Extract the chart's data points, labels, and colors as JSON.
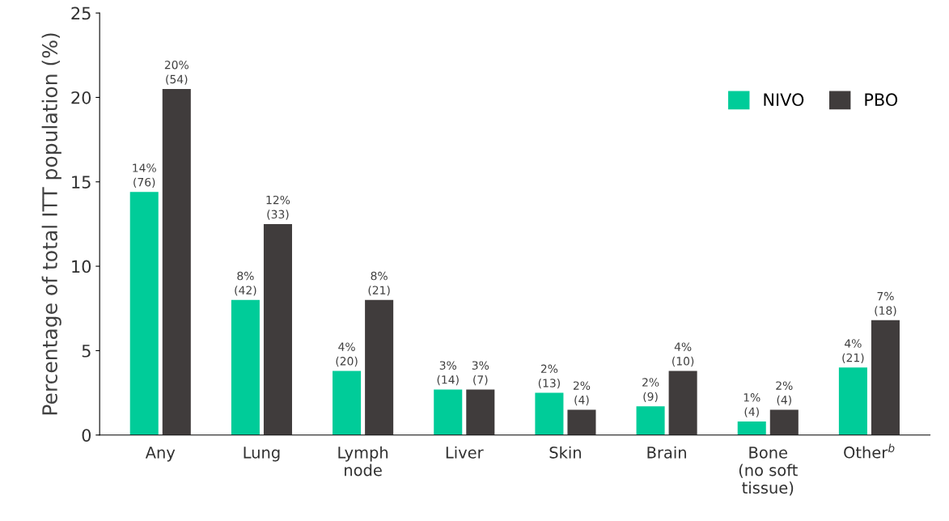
{
  "chart_data": {
    "type": "bar",
    "ylabel": "Percentage of total ITT population (%)",
    "categories": [
      "Any",
      "Lung",
      "Lymph\nnode",
      "Liver",
      "Skin",
      "Brain",
      "Bone\n(no soft\ntissue)",
      "Other$^{b}$"
    ],
    "series": [
      {
        "name": "NIVO",
        "color": "#00cc99",
        "values": [
          14.4,
          8.0,
          3.8,
          2.7,
          2.5,
          1.7,
          0.8,
          4.0
        ],
        "value_labels": [
          "14%\n(76)",
          "8%\n(42)",
          "4%\n(20)",
          "3%\n(14)",
          "2%\n(13)",
          "2%\n(9)",
          "1%\n(4)",
          "4%\n(21)"
        ]
      },
      {
        "name": "PBO",
        "color": "#403c3c",
        "values": [
          20.5,
          12.5,
          8.0,
          2.7,
          1.5,
          3.8,
          1.5,
          6.8
        ],
        "value_labels": [
          "20%\n(54)",
          "12%\n(33)",
          "8%\n(21)",
          "3%\n(7)",
          "2%\n(4)",
          "4%\n(10)",
          "2%\n(4)",
          "7%\n(18)"
        ]
      }
    ],
    "ylim": [
      0,
      25
    ],
    "yticks": [
      0,
      5,
      10,
      15,
      20,
      25
    ],
    "grid": false,
    "legend": "top right"
  }
}
